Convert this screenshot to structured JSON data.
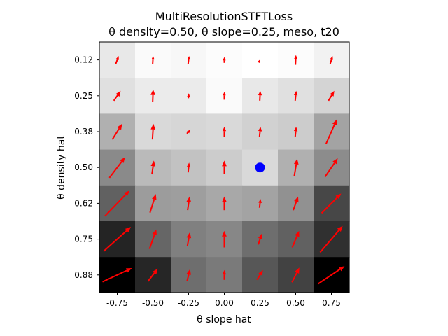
{
  "chart_data": {
    "type": "heatmap",
    "title_line1": "MultiResolutionSTFTLoss",
    "title_line2": "θ density=0.50, θ slope=0.25, meso, t20",
    "xlabel": "θ slope hat",
    "ylabel": "θ density hat",
    "x_ticks": [
      "-0.75",
      "-0.50",
      "-0.25",
      "0.00",
      "0.25",
      "0.50",
      "0.75"
    ],
    "y_ticks": [
      "0.12",
      "0.25",
      "0.38",
      "0.50",
      "0.62",
      "0.75",
      "0.88"
    ],
    "x_values": [
      -0.75,
      -0.5,
      -0.25,
      0.0,
      0.25,
      0.5,
      0.75
    ],
    "y_values": [
      0.125,
      0.25,
      0.375,
      0.5,
      0.625,
      0.75,
      0.875
    ],
    "grayscale_values": [
      [
        0.91,
        0.98,
        0.97,
        0.99,
        1.0,
        0.99,
        0.95
      ],
      [
        0.88,
        0.92,
        0.92,
        0.98,
        0.91,
        0.88,
        0.83
      ],
      [
        0.69,
        0.85,
        0.84,
        0.85,
        0.82,
        0.8,
        0.64
      ],
      [
        0.54,
        0.73,
        0.76,
        0.8,
        0.85,
        0.69,
        0.55
      ],
      [
        0.38,
        0.61,
        0.62,
        0.66,
        0.64,
        0.57,
        0.28
      ],
      [
        0.14,
        0.4,
        0.5,
        0.53,
        0.43,
        0.38,
        0.19
      ],
      [
        0.0,
        0.15,
        0.43,
        0.48,
        0.34,
        0.26,
        0.0
      ]
    ],
    "arrows": [
      [
        [
          0.3,
          0.8
        ],
        [
          0.05,
          0.8
        ],
        [
          0.1,
          0.8
        ],
        [
          0.0,
          0.6
        ],
        [
          0.05,
          0.1
        ],
        [
          0.05,
          1.0
        ],
        [
          0.25,
          0.8
        ]
      ],
      [
        [
          0.7,
          1.0
        ],
        [
          0.05,
          1.3
        ],
        [
          0.05,
          0.5
        ],
        [
          0.0,
          0.8
        ],
        [
          0.05,
          1.0
        ],
        [
          0.1,
          1.0
        ],
        [
          0.6,
          1.0
        ]
      ],
      [
        [
          1.0,
          1.6
        ],
        [
          0.1,
          1.6
        ],
        [
          0.35,
          0.4
        ],
        [
          0.0,
          1.0
        ],
        [
          0.1,
          1.0
        ],
        [
          0.1,
          1.0
        ],
        [
          1.1,
          2.5
        ]
      ],
      [
        [
          1.6,
          2.1
        ],
        [
          0.2,
          1.4
        ],
        [
          0.1,
          1.0
        ],
        [
          0.0,
          1.4
        ],
        [
          0.0,
          0.0
        ],
        [
          0.3,
          1.8
        ],
        [
          1.3,
          1.9
        ]
      ],
      [
        [
          2.5,
          2.6
        ],
        [
          0.6,
          1.9
        ],
        [
          0.2,
          1.4
        ],
        [
          0.0,
          1.4
        ],
        [
          0.1,
          0.9
        ],
        [
          0.5,
          1.4
        ],
        [
          2.0,
          2.0
        ]
      ],
      [
        [
          2.8,
          2.5
        ],
        [
          0.7,
          2.0
        ],
        [
          0.25,
          1.4
        ],
        [
          0.0,
          1.7
        ],
        [
          0.35,
          1.1
        ],
        [
          0.7,
          1.7
        ],
        [
          2.3,
          2.7
        ]
      ],
      [
        [
          3.0,
          1.4
        ],
        [
          1.0,
          1.3
        ],
        [
          0.3,
          1.2
        ],
        [
          0.0,
          1.0
        ],
        [
          0.6,
          1.0
        ],
        [
          0.75,
          1.5
        ],
        [
          2.7,
          1.8
        ]
      ]
    ],
    "marker": {
      "x": 0.25,
      "y": 0.5,
      "color": "#0000ff"
    },
    "arrow_color": "#ff0000",
    "grid": false,
    "colormap": "gray"
  }
}
